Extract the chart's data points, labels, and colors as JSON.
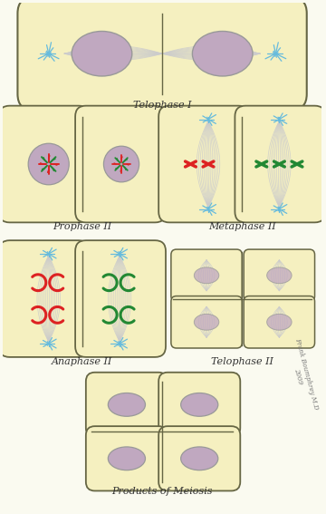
{
  "bg_color": "#fafaf0",
  "cell_fill": "#f5f0c0",
  "cell_edge": "#666644",
  "nucleus_fill": "#c0a8c0",
  "nucleus_edge": "#999999",
  "spindle_color": "#cccccc",
  "aster_color": "#66bbdd",
  "chr_red": "#dd2222",
  "chr_green": "#228833",
  "labels": [
    "Telophase I",
    "Prophase II",
    "Metaphase II",
    "Anaphase II",
    "Telophase II",
    "Products of Meiosis"
  ],
  "watermark": "Frank Boumphrey M.D\n2009"
}
